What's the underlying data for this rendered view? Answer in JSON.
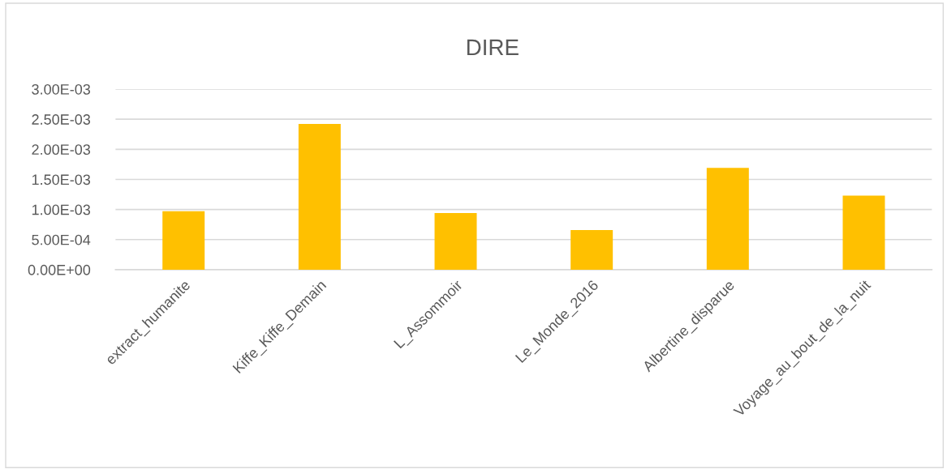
{
  "chart_data": {
    "type": "bar",
    "title": "DIRE",
    "categories": [
      "extract_humanite",
      "Kiffe_Kiffe_Demain",
      "L_Assommoir",
      "Le_Monde_2016",
      "Albertine_disparue",
      "Voyage_au_bout_de_la_nuit"
    ],
    "values": [
      0.00097,
      0.00242,
      0.00094,
      0.00066,
      0.00169,
      0.00123
    ],
    "color": "#ffc000",
    "ylim": [
      0,
      0.003
    ],
    "yticks": [
      {
        "value": 0,
        "label": "0.00E+00"
      },
      {
        "value": 0.0005,
        "label": "5.00E-04"
      },
      {
        "value": 0.001,
        "label": "1.00E-03"
      },
      {
        "value": 0.0015,
        "label": "1.50E-03"
      },
      {
        "value": 0.002,
        "label": "2.00E-03"
      },
      {
        "value": 0.0025,
        "label": "2.50E-03"
      },
      {
        "value": 0.003,
        "label": "3.00E-03"
      }
    ],
    "grid": "y",
    "legend": false
  }
}
